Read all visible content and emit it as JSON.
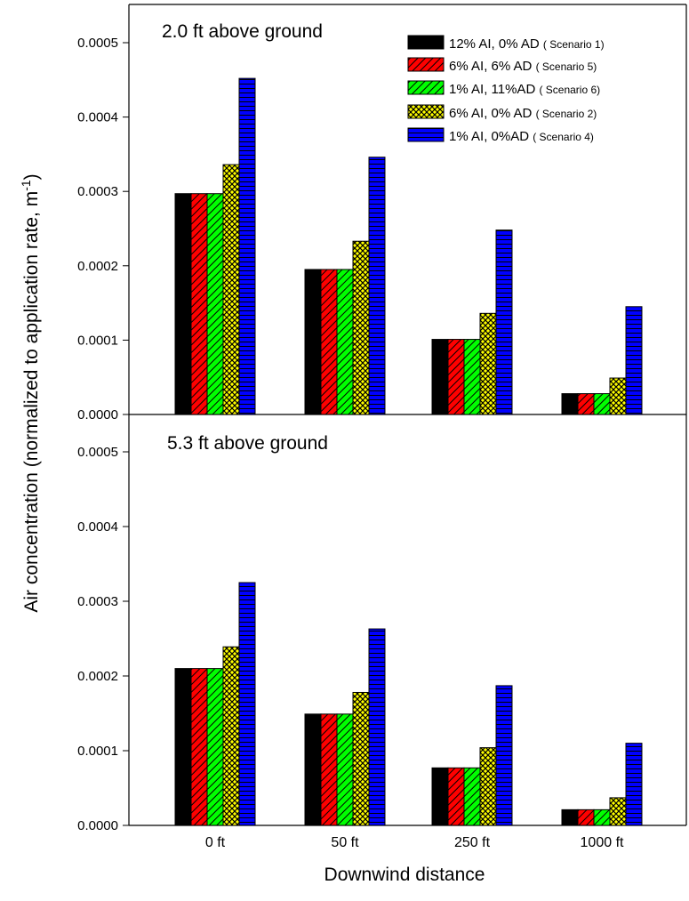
{
  "chart_data": {
    "type": "bar",
    "ylabel": "Air concentration (normalized to application rate, m",
    "ylabel_sup": "-1",
    "ylabel_end": ")",
    "xlabel": "Downwind distance",
    "categories": [
      "0 ft",
      "50 ft",
      "250 ft",
      "1000 ft"
    ],
    "ylim": [
      0,
      0.00055
    ],
    "yticks": [
      "0.0000",
      "0.0001",
      "0.0002",
      "0.0003",
      "0.0004",
      "0.0005"
    ],
    "series_styles": [
      {
        "color": "#000000",
        "pattern": "solid"
      },
      {
        "color": "#ff0000",
        "pattern": "diag"
      },
      {
        "color": "#00ff00",
        "pattern": "diag"
      },
      {
        "color": "#ffff00",
        "pattern": "crosshatch"
      },
      {
        "color": "#0000ff",
        "pattern": "horizontal"
      }
    ],
    "legend": {
      "placement": "top-right",
      "entries": [
        {
          "label": "12% AI, 0% AD",
          "note": "( Scenario 1)"
        },
        {
          "label": "6% AI, 6% AD",
          "note": "( Scenario 5)"
        },
        {
          "label": "1% AI, 11%AD",
          "note": "( Scenario 6)"
        },
        {
          "label": "6% AI, 0% AD",
          "note": "( Scenario 2)"
        },
        {
          "label": "1% AI, 0%AD",
          "note": "( Scenario 4)"
        }
      ]
    },
    "panels": [
      {
        "annotation": "2.0 ft above ground",
        "series": [
          {
            "values": [
              0.000297,
              0.000195,
              0.000101,
              2.8e-05
            ]
          },
          {
            "values": [
              0.000297,
              0.000195,
              0.000101,
              2.8e-05
            ]
          },
          {
            "values": [
              0.000297,
              0.000195,
              0.000101,
              2.8e-05
            ]
          },
          {
            "values": [
              0.000336,
              0.000233,
              0.000136,
              4.9e-05
            ]
          },
          {
            "values": [
              0.000452,
              0.000346,
              0.000248,
              0.000145
            ]
          }
        ]
      },
      {
        "annotation": "5.3 ft above ground",
        "series": [
          {
            "values": [
              0.00021,
              0.000149,
              7.7e-05,
              2.1e-05
            ]
          },
          {
            "values": [
              0.00021,
              0.000149,
              7.7e-05,
              2.1e-05
            ]
          },
          {
            "values": [
              0.00021,
              0.000149,
              7.7e-05,
              2.1e-05
            ]
          },
          {
            "values": [
              0.000239,
              0.000178,
              0.000104,
              3.7e-05
            ]
          },
          {
            "values": [
              0.000325,
              0.000263,
              0.000187,
              0.00011
            ]
          }
        ]
      }
    ]
  }
}
